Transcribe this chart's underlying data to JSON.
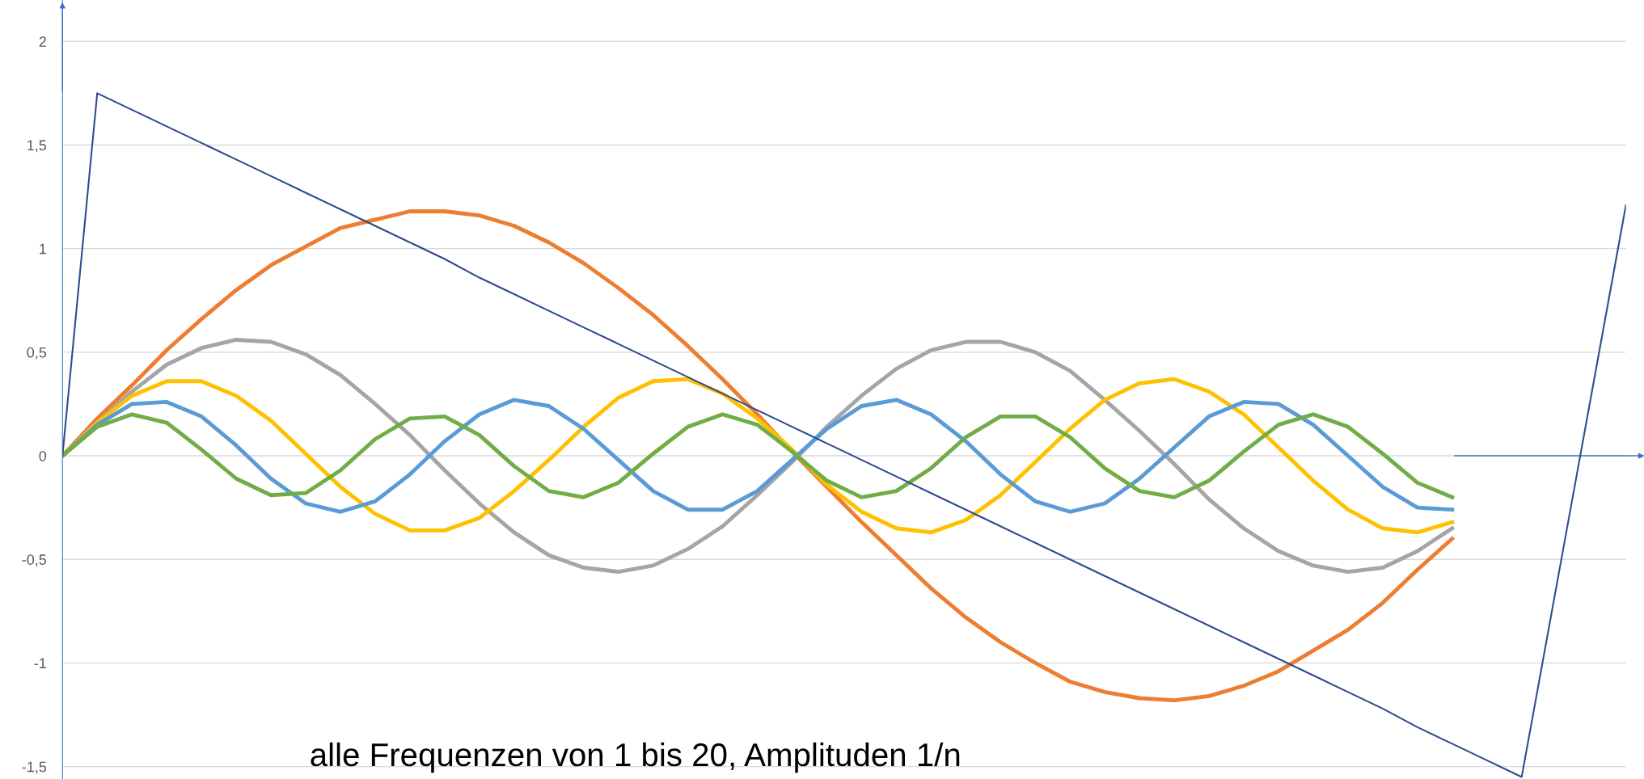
{
  "chart_data": {
    "type": "line",
    "annotations": [
      "alle Frequenzen von 1 bis 20, Amplituden 1/n"
    ],
    "categories": [
      null,
      null,
      null,
      null,
      null,
      null,
      null,
      null,
      null,
      null,
      null,
      null,
      null,
      null,
      null,
      null,
      null,
      null,
      null,
      null,
      null,
      null,
      null,
      null,
      null,
      null,
      null,
      null,
      null,
      null,
      null,
      null,
      null,
      null,
      null,
      null,
      null,
      null,
      null,
      null,
      null,
      null,
      null,
      null,
      null,
      null
    ],
    "series": [
      {
        "color": "#ed7d31",
        "values": [
          0,
          0.18,
          0.34,
          0.51,
          0.66,
          0.8,
          0.92,
          1.01,
          1.1,
          1.14,
          1.18,
          1.18,
          1.16,
          1.11,
          1.03,
          0.93,
          0.81,
          0.68,
          0.53,
          0.37,
          0.2,
          0.02,
          -0.15,
          -0.32,
          -0.48,
          -0.64,
          -0.78,
          -0.9,
          -1.0,
          -1.09,
          -1.14,
          -1.17,
          -1.18,
          -1.16,
          -1.11,
          -1.04,
          -0.94,
          -0.84,
          -0.71,
          -0.55,
          -0.4,
          null,
          null,
          null,
          null,
          null
        ]
      },
      {
        "color": "#a5a5a5",
        "values": [
          0,
          0.16,
          0.31,
          0.44,
          0.52,
          0.56,
          0.55,
          0.49,
          0.39,
          0.25,
          0.1,
          -0.07,
          -0.23,
          -0.37,
          -0.48,
          -0.54,
          -0.56,
          -0.53,
          -0.45,
          -0.34,
          -0.19,
          -0.03,
          0.14,
          0.29,
          0.42,
          0.51,
          0.55,
          0.55,
          0.5,
          0.41,
          0.27,
          0.12,
          -0.04,
          -0.21,
          -0.35,
          -0.46,
          -0.53,
          -0.56,
          -0.54,
          -0.46,
          -0.35,
          null,
          null,
          null,
          null,
          null
        ]
      },
      {
        "color": "#ffc000",
        "values": [
          0,
          0.16,
          0.29,
          0.36,
          0.36,
          0.29,
          0.17,
          0.01,
          -0.15,
          -0.28,
          -0.36,
          -0.36,
          -0.3,
          -0.17,
          -0.02,
          0.14,
          0.28,
          0.36,
          0.37,
          0.3,
          0.18,
          0.03,
          -0.14,
          -0.27,
          -0.35,
          -0.37,
          -0.31,
          -0.19,
          -0.03,
          0.13,
          0.27,
          0.35,
          0.37,
          0.31,
          0.2,
          0.04,
          -0.12,
          -0.26,
          -0.35,
          -0.37,
          -0.32,
          null,
          null,
          null,
          null,
          null
        ]
      },
      {
        "color": "#5b9bd5",
        "values": [
          0,
          0.15,
          0.25,
          0.26,
          0.19,
          0.05,
          -0.11,
          -0.23,
          -0.27,
          -0.22,
          -0.09,
          0.07,
          0.2,
          0.27,
          0.24,
          0.13,
          -0.02,
          -0.17,
          -0.26,
          -0.26,
          -0.17,
          -0.02,
          0.13,
          0.24,
          0.27,
          0.2,
          0.07,
          -0.09,
          -0.22,
          -0.27,
          -0.23,
          -0.11,
          0.04,
          0.19,
          0.26,
          0.25,
          0.15,
          0,
          -0.15,
          -0.25,
          -0.26,
          null,
          null,
          null,
          null,
          null
        ]
      },
      {
        "color": "#70ad47",
        "values": [
          0,
          0.14,
          0.2,
          0.16,
          0.03,
          -0.11,
          -0.19,
          -0.18,
          -0.07,
          0.08,
          0.18,
          0.19,
          0.1,
          -0.05,
          -0.17,
          -0.2,
          -0.13,
          0.01,
          0.14,
          0.2,
          0.15,
          0.02,
          -0.12,
          -0.2,
          -0.17,
          -0.06,
          0.09,
          0.19,
          0.19,
          0.09,
          -0.06,
          -0.17,
          -0.2,
          -0.12,
          0.02,
          0.15,
          0.2,
          0.14,
          0.01,
          -0.13,
          -0.2,
          null,
          null,
          null,
          null,
          null
        ]
      },
      {
        "color": "#2f4b8f",
        "values": [
          0,
          1.75,
          1.67,
          1.59,
          1.51,
          1.43,
          1.35,
          1.27,
          1.19,
          1.11,
          1.03,
          0.95,
          0.86,
          0.78,
          0.7,
          0.62,
          0.54,
          0.46,
          0.38,
          0.3,
          0.22,
          0.14,
          0.06,
          -0.02,
          -0.1,
          -0.18,
          -0.26,
          -0.34,
          -0.42,
          -0.5,
          -0.58,
          -0.66,
          -0.74,
          -0.82,
          -0.9,
          -0.98,
          -1.06,
          -1.14,
          -1.22,
          -1.31,
          -1.39,
          -1.47,
          -1.55,
          -0.63,
          0.29,
          1.21
        ]
      }
    ],
    "ylim": [
      -1.56,
      2.2
    ],
    "yticks": [
      {
        "value": -1.5,
        "label": "-1,5"
      },
      -1,
      {
        "value": -0.5,
        "label": "-0,5"
      },
      0,
      {
        "value": 0.5,
        "label": "0,5"
      },
      1,
      {
        "value": 1.5,
        "label": "1,5"
      },
      2
    ],
    "grid": "y",
    "marker": "none",
    "line_style": "solid"
  }
}
